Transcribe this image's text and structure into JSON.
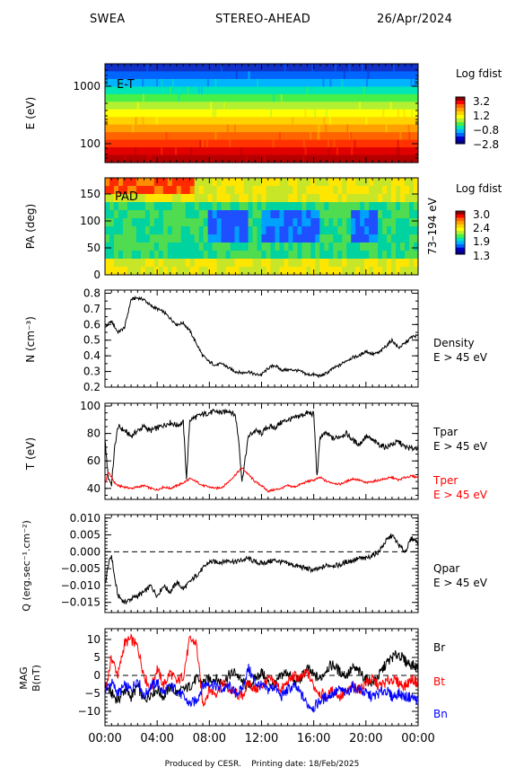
{
  "header": {
    "instrument": "SWEA",
    "spacecraft": "STEREO-AHEAD",
    "date": "26/Apr/2024"
  },
  "footer": {
    "produced": "Produced by CESR.",
    "printing": "Printing date: 18/Feb/2025"
  },
  "x_axis": {
    "tick_labels": [
      "00:00",
      "04:00",
      "08:00",
      "12:00",
      "16:00",
      "20:00",
      "00:00"
    ]
  },
  "colors": {
    "black": "#000000",
    "red": "#ff0000",
    "blue": "#0000ff"
  },
  "chart_data": [
    {
      "type": "heatmap",
      "panel": "energy",
      "ylabel": "E (eV)",
      "annotation": "E-T",
      "yscale": "log",
      "y_tick_labels": [
        "1000",
        "100"
      ],
      "colorbar_title": "Log fdist",
      "colorbar_ticks": [
        "3.2",
        "1.2",
        "−0.8",
        "−2.8"
      ],
      "description_bands_top_to_bottom": [
        "#1030c8",
        "#0064ff",
        "#00b4ff",
        "#00e6b4",
        "#46f046",
        "#b4f032",
        "#ffff00",
        "#ffd200",
        "#ffa000",
        "#ff6400",
        "#ff3200",
        "#e10000",
        "#b40000"
      ]
    },
    {
      "type": "heatmap",
      "panel": "pitch_angle",
      "ylabel": "PA (deg)",
      "annotation": "PAD",
      "ylim": [
        0,
        180
      ],
      "y_tick_labels": [
        "150",
        "100",
        "50",
        "0"
      ],
      "right_label": "73–194 eV",
      "colorbar_title": "Log fdist",
      "colorbar_ticks": [
        "3.0",
        "2.4",
        "1.9",
        "1.3"
      ]
    },
    {
      "type": "line",
      "panel": "density",
      "ylabel": "N (cm⁻³)",
      "ylim": [
        0.2,
        0.82
      ],
      "y_tick_labels": [
        "0.8",
        "0.7",
        "0.6",
        "0.5",
        "0.4",
        "0.3",
        "0.2"
      ],
      "right_label": [
        "Density",
        "E > 45 eV"
      ],
      "series": [
        {
          "color": "#000000",
          "x_hours": [
            0,
            0.5,
            1,
            1.5,
            2,
            2.5,
            3,
            3.5,
            4,
            4.5,
            5,
            5.5,
            6,
            6.5,
            7,
            7.5,
            8,
            8.5,
            9,
            9.5,
            10,
            10.5,
            11,
            11.5,
            12,
            12.5,
            13,
            13.5,
            14,
            14.5,
            15,
            15.5,
            16,
            16.5,
            17,
            17.5,
            18,
            18.5,
            19,
            19.5,
            20,
            20.5,
            21,
            21.5,
            22,
            22.5,
            23,
            23.5,
            24
          ],
          "values": [
            0.58,
            0.62,
            0.55,
            0.58,
            0.76,
            0.77,
            0.76,
            0.72,
            0.7,
            0.68,
            0.64,
            0.6,
            0.61,
            0.56,
            0.48,
            0.4,
            0.36,
            0.34,
            0.35,
            0.32,
            0.3,
            0.29,
            0.3,
            0.28,
            0.28,
            0.32,
            0.34,
            0.31,
            0.31,
            0.31,
            0.3,
            0.28,
            0.28,
            0.27,
            0.29,
            0.32,
            0.34,
            0.37,
            0.39,
            0.4,
            0.43,
            0.41,
            0.42,
            0.46,
            0.5,
            0.45,
            0.48,
            0.52,
            0.53
          ]
        }
      ]
    },
    {
      "type": "line",
      "panel": "temperature",
      "ylabel": "T (eV)",
      "ylim": [
        32,
        102
      ],
      "y_tick_labels": [
        "100",
        "80",
        "60",
        "40"
      ],
      "series": [
        {
          "name": [
            "Tpar",
            "E > 45 eV"
          ],
          "color": "#000000",
          "x_hours": [
            0,
            0.25,
            0.5,
            0.75,
            1,
            1.5,
            2,
            2.5,
            3,
            3.5,
            4,
            4.5,
            5,
            5.5,
            6,
            6.25,
            6.5,
            7,
            7.5,
            8,
            8.5,
            9,
            9.5,
            10,
            10.25,
            10.5,
            11,
            11.5,
            12,
            12.5,
            13,
            13.5,
            14,
            14.5,
            15,
            15.5,
            16,
            16.25,
            16.5,
            17,
            17.5,
            18,
            18.5,
            19,
            19.5,
            20,
            20.5,
            21,
            21.5,
            22,
            22.5,
            23,
            23.5,
            24
          ],
          "values": [
            75,
            48,
            43,
            70,
            85,
            82,
            78,
            82,
            85,
            82,
            84,
            86,
            88,
            86,
            88,
            47,
            90,
            92,
            94,
            95,
            96,
            95,
            97,
            93,
            75,
            45,
            78,
            82,
            80,
            85,
            84,
            88,
            90,
            91,
            93,
            95,
            94,
            48,
            78,
            80,
            76,
            78,
            80,
            75,
            72,
            78,
            75,
            72,
            70,
            72,
            74,
            70,
            69,
            70
          ]
        },
        {
          "name": [
            "Tper",
            "E > 45 eV"
          ],
          "color": "#ff0000",
          "x_hours": [
            0,
            0.25,
            0.5,
            0.75,
            1,
            1.5,
            2,
            2.5,
            3,
            3.5,
            4,
            4.5,
            5,
            5.5,
            6,
            6.5,
            7,
            7.5,
            8,
            8.5,
            9,
            9.5,
            10,
            10.5,
            11,
            11.5,
            12,
            12.5,
            13,
            13.5,
            14,
            14.5,
            15,
            15.5,
            16,
            16.5,
            17,
            17.5,
            18,
            18.5,
            19,
            19.5,
            20,
            20.5,
            21,
            21.5,
            22,
            22.5,
            23,
            23.5,
            24
          ],
          "values": [
            43,
            52,
            48,
            44,
            42,
            41,
            40,
            41,
            42,
            40,
            39,
            41,
            40,
            42,
            44,
            47,
            45,
            42,
            41,
            40,
            41,
            45,
            50,
            55,
            50,
            45,
            42,
            38,
            39,
            40,
            42,
            41,
            43,
            45,
            46,
            48,
            45,
            44,
            43,
            45,
            47,
            46,
            44,
            45,
            46,
            47,
            48,
            46,
            48,
            49,
            48
          ]
        }
      ]
    },
    {
      "type": "line",
      "panel": "heat_flux",
      "ylabel": "Q (erg.sec⁻¹.cm⁻²)",
      "ylim": [
        -0.018,
        0.011
      ],
      "y_tick_labels": [
        "0.010",
        "0.005",
        "0.000",
        "−0.005",
        "−0.010",
        "−0.015"
      ],
      "right_label": [
        "Qpar",
        "E > 45 eV"
      ],
      "series": [
        {
          "color": "#000000",
          "x_hours": [
            0,
            0.25,
            0.5,
            0.75,
            1,
            1.5,
            2,
            2.5,
            3,
            3.5,
            4,
            4.5,
            5,
            5.5,
            6,
            6.5,
            7,
            7.5,
            8,
            8.5,
            9,
            9.5,
            10,
            10.5,
            11,
            11.5,
            12,
            12.5,
            13,
            13.5,
            14,
            14.5,
            15,
            15.5,
            16,
            16.5,
            17,
            17.5,
            18,
            18.5,
            19,
            19.5,
            20,
            20.5,
            21,
            21.5,
            22,
            22.5,
            23,
            23.5,
            24
          ],
          "values": [
            -0.01,
            -0.004,
            -0.001,
            -0.008,
            -0.013,
            -0.015,
            -0.014,
            -0.013,
            -0.012,
            -0.01,
            -0.013,
            -0.01,
            -0.012,
            -0.009,
            -0.011,
            -0.009,
            -0.007,
            -0.005,
            -0.003,
            -0.003,
            -0.003,
            -0.0025,
            -0.003,
            -0.0025,
            -0.002,
            -0.003,
            -0.0035,
            -0.003,
            -0.0025,
            -0.003,
            -0.0035,
            -0.004,
            -0.0045,
            -0.005,
            -0.0055,
            -0.005,
            -0.004,
            -0.004,
            -0.004,
            -0.003,
            -0.0025,
            -0.002,
            -0.002,
            -0.001,
            0.0,
            0.003,
            0.005,
            0.002,
            0.0,
            0.004,
            0.003
          ]
        }
      ]
    },
    {
      "type": "line",
      "panel": "magnetic_field",
      "ylabel": [
        "MAG",
        "B(nT)"
      ],
      "ylim": [
        -14,
        13
      ],
      "y_tick_labels": [
        "10",
        "5",
        "0",
        "−5",
        "−10"
      ],
      "series": [
        {
          "name": "Br",
          "color": "#000000",
          "x_hours": [
            0,
            0.5,
            1,
            1.5,
            2,
            2.5,
            3,
            3.5,
            4,
            4.5,
            5,
            5.5,
            6,
            6.5,
            7,
            7.5,
            8,
            8.5,
            9,
            9.5,
            10,
            10.5,
            11,
            11.5,
            12,
            12.5,
            13,
            13.5,
            14,
            14.5,
            15,
            15.5,
            16,
            16.5,
            17,
            17.5,
            18,
            18.5,
            19,
            19.5,
            20,
            20.5,
            21,
            21.5,
            22,
            22.5,
            23,
            23.5,
            24
          ],
          "values": [
            -3,
            -5,
            -7,
            -4,
            -6,
            -3,
            -7,
            -5,
            -4,
            -6,
            -3,
            -5,
            -4,
            -3,
            -1,
            -2,
            -1,
            -1,
            -2,
            0,
            1,
            -2,
            -3,
            -1,
            1,
            -2,
            -3,
            0,
            1,
            -2,
            -1,
            2,
            0,
            -1,
            2,
            3,
            1,
            0,
            2,
            1,
            -1,
            -2,
            0,
            3,
            5,
            6,
            4,
            3,
            2
          ]
        },
        {
          "name": "Bt",
          "color": "#ff0000",
          "x_hours": [
            0,
            0.5,
            1,
            1.5,
            2,
            2.5,
            3,
            3.5,
            4,
            4.5,
            5,
            5.5,
            6,
            6.5,
            7,
            7.5,
            8,
            8.5,
            9,
            9.5,
            10,
            10.5,
            11,
            11.5,
            12,
            12.5,
            13,
            13.5,
            14,
            14.5,
            15,
            15.5,
            16,
            16.5,
            17,
            17.5,
            18,
            18.5,
            19,
            19.5,
            20,
            20.5,
            21,
            21.5,
            22,
            22.5,
            23,
            23.5,
            24
          ],
          "values": [
            -5,
            5,
            0,
            9,
            10,
            8,
            0,
            -4,
            2,
            -3,
            1,
            -2,
            0,
            10,
            9,
            -8,
            -4,
            -5,
            -2,
            -4,
            -5,
            -6,
            -2,
            -4,
            -3,
            -1,
            -2,
            -4,
            -2,
            0,
            -1,
            1,
            -3,
            -5,
            -6,
            -4,
            -6,
            -5,
            -3,
            -4,
            -2,
            -1,
            -3,
            -2,
            -1,
            -2,
            -3,
            -1,
            -2
          ]
        },
        {
          "name": "Bn",
          "color": "#0000ff",
          "x_hours": [
            0,
            0.5,
            1,
            1.5,
            2,
            2.5,
            3,
            3.5,
            4,
            4.5,
            5,
            5.5,
            6,
            6.5,
            7,
            7.5,
            8,
            8.5,
            9,
            9.5,
            10,
            10.5,
            11,
            11.5,
            12,
            12.5,
            13,
            13.5,
            14,
            14.5,
            15,
            15.5,
            16,
            16.5,
            17,
            17.5,
            18,
            18.5,
            19,
            19.5,
            20,
            20.5,
            21,
            21.5,
            22,
            22.5,
            23,
            23.5,
            24
          ],
          "values": [
            -4,
            -2,
            -5,
            -3,
            -4,
            -1,
            -6,
            -3,
            -2,
            -5,
            -3,
            -4,
            -6,
            -8,
            -7,
            -3,
            -2,
            -3,
            -4,
            -3,
            -5,
            -4,
            2,
            -2,
            -3,
            -4,
            -3,
            -6,
            -4,
            -3,
            -5,
            -8,
            -9,
            -7,
            -6,
            -5,
            -4,
            -5,
            -3,
            -4,
            -5,
            -6,
            -5,
            -4,
            -6,
            -5,
            -6,
            -6,
            -7
          ]
        }
      ]
    }
  ]
}
